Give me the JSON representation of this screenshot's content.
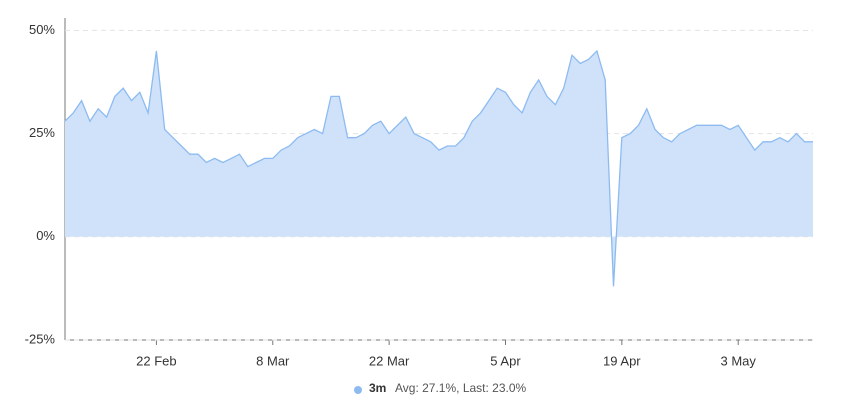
{
  "chart_data": {
    "type": "area",
    "x": [
      "11 Feb",
      "12 Feb",
      "13 Feb",
      "14 Feb",
      "15 Feb",
      "16 Feb",
      "17 Feb",
      "18 Feb",
      "19 Feb",
      "20 Feb",
      "21 Feb",
      "22 Feb",
      "23 Feb",
      "24 Feb",
      "25 Feb",
      "26 Feb",
      "27 Feb",
      "28 Feb",
      "1 Mar",
      "2 Mar",
      "3 Mar",
      "4 Mar",
      "5 Mar",
      "6 Mar",
      "7 Mar",
      "8 Mar",
      "9 Mar",
      "10 Mar",
      "11 Mar",
      "12 Mar",
      "13 Mar",
      "14 Mar",
      "15 Mar",
      "16 Mar",
      "17 Mar",
      "18 Mar",
      "19 Mar",
      "20 Mar",
      "21 Mar",
      "22 Mar",
      "23 Mar",
      "24 Mar",
      "25 Mar",
      "26 Mar",
      "27 Mar",
      "28 Mar",
      "29 Mar",
      "30 Mar",
      "31 Mar",
      "1 Apr",
      "2 Apr",
      "3 Apr",
      "4 Apr",
      "5 Apr",
      "6 Apr",
      "7 Apr",
      "8 Apr",
      "9 Apr",
      "10 Apr",
      "11 Apr",
      "12 Apr",
      "13 Apr",
      "14 Apr",
      "15 Apr",
      "16 Apr",
      "17 Apr",
      "18 Apr",
      "19 Apr",
      "20 Apr",
      "21 Apr",
      "22 Apr",
      "23 Apr",
      "24 Apr",
      "25 Apr",
      "26 Apr",
      "27 Apr",
      "28 Apr",
      "29 Apr",
      "30 Apr",
      "1 May",
      "2 May",
      "3 May",
      "4 May",
      "5 May",
      "6 May",
      "7 May",
      "8 May",
      "9 May",
      "10 May",
      "11 May",
      "12 May"
    ],
    "series": [
      {
        "name": "3m",
        "color": "#8dbbf0",
        "fill": "#cfe2fa",
        "values": [
          28,
          30,
          33,
          28,
          31,
          29,
          34,
          36,
          33,
          35,
          30,
          45,
          26,
          24,
          22,
          20,
          20,
          18,
          19,
          18,
          19,
          20,
          17,
          18,
          19,
          19,
          21,
          22,
          24,
          25,
          26,
          25,
          34,
          34,
          24,
          24,
          25,
          27,
          28,
          25,
          27,
          29,
          25,
          24,
          23,
          21,
          22,
          22,
          24,
          28,
          30,
          33,
          36,
          35,
          32,
          30,
          35,
          38,
          34,
          32,
          36,
          44,
          42,
          43,
          45,
          38,
          -12,
          24,
          25,
          27,
          31,
          26,
          24,
          23,
          25,
          26,
          27,
          27,
          27,
          27,
          26,
          27,
          24,
          21,
          23,
          23,
          24,
          23,
          25,
          23,
          23
        ]
      }
    ],
    "legend_note": "Avg: 27.1%, Last: 23.0%",
    "xticks": [
      "22 Feb",
      "8 Mar",
      "22 Mar",
      "5 Apr",
      "19 Apr",
      "3 May"
    ],
    "ylim": [
      -25,
      53
    ],
    "yticks": [
      {
        "value": -25,
        "label": "-25%"
      },
      {
        "value": 0,
        "label": "0%"
      },
      {
        "value": 25,
        "label": "25%"
      },
      {
        "value": 50,
        "label": "50%"
      }
    ],
    "grid": true
  }
}
